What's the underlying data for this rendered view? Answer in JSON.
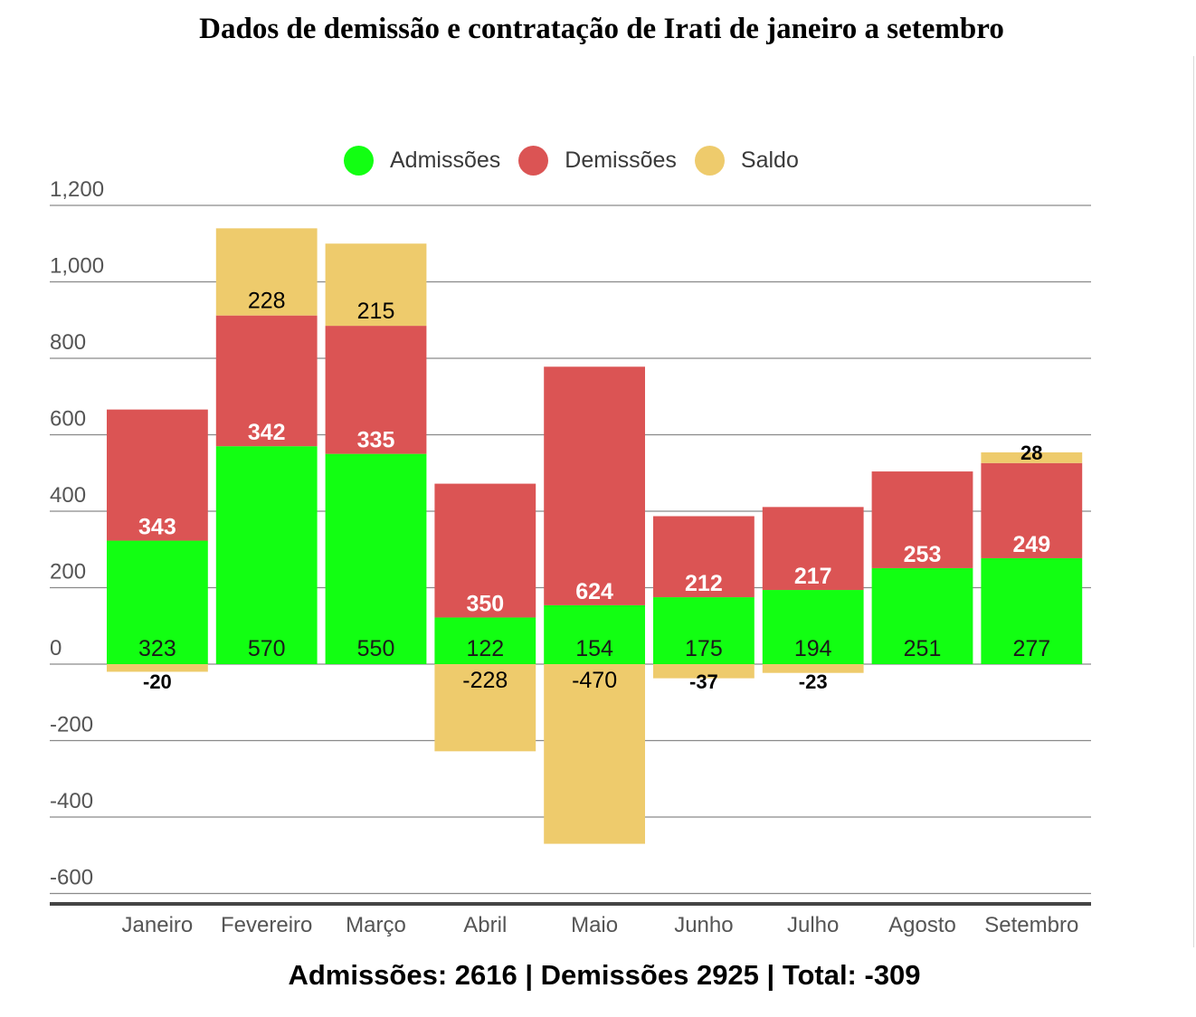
{
  "title": "Dados de demissão e contratação de Irati de janeiro a setembro",
  "footer": "Admissões: 2616 | Demissões 2925 | Total: -309",
  "colors": {
    "admissoes": "#12ff12",
    "demissoes": "#db5454",
    "saldo": "#eecb6c",
    "grid": "#8a8a8a",
    "axis_text": "#555555"
  },
  "chart_data": {
    "type": "bar",
    "stacked": true,
    "title": "Dados de demissão e contratação de Irati de janeiro a setembro",
    "categories": [
      "Janeiro",
      "Fevereiro",
      "Março",
      "Abril",
      "Maio",
      "Junho",
      "Julho",
      "Agosto",
      "Setembro"
    ],
    "series": [
      {
        "name": "Admissões",
        "color": "#12ff12",
        "values": [
          323,
          570,
          550,
          122,
          154,
          175,
          194,
          251,
          277
        ]
      },
      {
        "name": "Demissões",
        "color": "#db5454",
        "values": [
          343,
          342,
          335,
          350,
          624,
          212,
          217,
          253,
          249
        ]
      },
      {
        "name": "Saldo",
        "color": "#eecb6c",
        "values": [
          -20,
          228,
          215,
          -228,
          -470,
          -37,
          -23,
          null,
          28
        ]
      }
    ],
    "yticks": [
      "1,200",
      "1,000",
      "800",
      "600",
      "400",
      "200",
      "0",
      "-200",
      "-400",
      "-600"
    ],
    "ytick_values": [
      1200,
      1000,
      800,
      600,
      400,
      200,
      0,
      -200,
      -400,
      -600
    ],
    "ylim": [
      -600,
      1200
    ],
    "legend_position": "top-center"
  }
}
